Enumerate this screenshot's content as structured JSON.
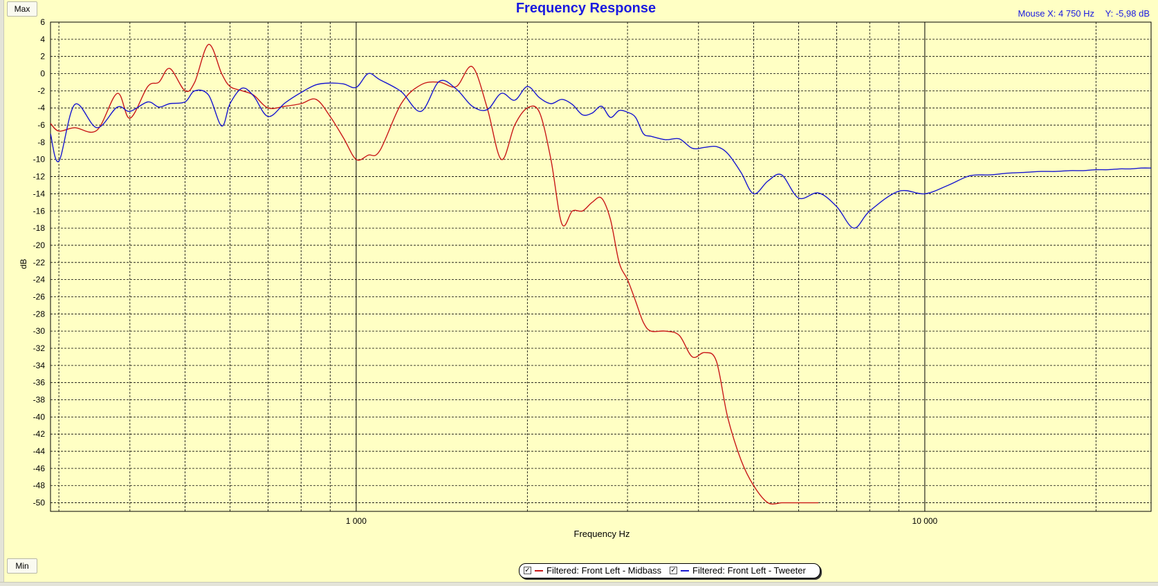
{
  "buttons": {
    "max_label": "Max",
    "min_label": "Min"
  },
  "mouse": {
    "x_readout": "Mouse X: 4 750 Hz",
    "y_readout": "Y: -5,98 dB"
  },
  "chart_data": {
    "type": "line",
    "title": "Frequency Response",
    "xlabel": "Frequency Hz",
    "ylabel": "dB",
    "xscale": "log",
    "xlim": [
      290,
      25000
    ],
    "ylim": [
      -51,
      6
    ],
    "yticks": [
      6,
      4,
      2,
      0,
      -2,
      -4,
      -6,
      -8,
      -10,
      -12,
      -14,
      -16,
      -18,
      -20,
      -22,
      -24,
      -26,
      -28,
      -30,
      -32,
      -34,
      -36,
      -38,
      -40,
      -42,
      -44,
      -46,
      -48,
      -50
    ],
    "xtick_labels": [
      {
        "value": 1000,
        "label": "1 000"
      },
      {
        "value": 10000,
        "label": "10 000"
      }
    ],
    "grid": true,
    "legend_position": "bottom-center",
    "background": "#ffffc4",
    "series": [
      {
        "name": "Filtered: Front Left - Midbass",
        "color": "#c81818",
        "checked": true,
        "x": [
          290,
          300,
          320,
          350,
          380,
          400,
          430,
          450,
          470,
          500,
          520,
          550,
          580,
          600,
          630,
          660,
          700,
          750,
          800,
          850,
          900,
          950,
          1000,
          1050,
          1100,
          1200,
          1300,
          1400,
          1500,
          1600,
          1700,
          1800,
          1900,
          2000,
          2100,
          2200,
          2300,
          2400,
          2500,
          2600,
          2700,
          2800,
          2900,
          3000,
          3100,
          3200,
          3300,
          3500,
          3700,
          3900,
          4100,
          4300,
          4500,
          4750,
          5000,
          5300,
          5600,
          5800,
          6000,
          6100,
          6200,
          6300,
          6400,
          6500
        ],
        "y": [
          -5.8,
          -6.7,
          -6.3,
          -6.6,
          -2.3,
          -5.2,
          -1.5,
          -1,
          0.6,
          -2,
          -1,
          3.4,
          0,
          -1.5,
          -2,
          -2.5,
          -4,
          -3.8,
          -3.5,
          -3,
          -5,
          -7.5,
          -10,
          -9.5,
          -9,
          -3.5,
          -1.3,
          -1,
          -1.5,
          0.8,
          -4,
          -10,
          -6,
          -4,
          -4.5,
          -10,
          -17.5,
          -16,
          -16,
          -15,
          -14.5,
          -17,
          -22,
          -24,
          -26.5,
          -29,
          -30,
          -30,
          -30.5,
          -33,
          -32.5,
          -33.5,
          -40,
          -45,
          -48,
          -50,
          -50,
          -50,
          -50,
          -50,
          -50,
          -50,
          -50,
          -50
        ]
      },
      {
        "name": "Filtered: Front Left - Tweeter",
        "color": "#1818d0",
        "checked": true,
        "x": [
          290,
          300,
          320,
          350,
          380,
          400,
          430,
          450,
          470,
          500,
          520,
          550,
          580,
          600,
          630,
          660,
          700,
          750,
          800,
          850,
          900,
          950,
          1000,
          1050,
          1100,
          1200,
          1300,
          1400,
          1500,
          1600,
          1700,
          1800,
          1900,
          2000,
          2100,
          2200,
          2300,
          2400,
          2500,
          2600,
          2700,
          2800,
          2900,
          3000,
          3100,
          3200,
          3300,
          3500,
          3700,
          3900,
          4100,
          4300,
          4500,
          4750,
          5000,
          5300,
          5600,
          6000,
          6500,
          7000,
          7500,
          8000,
          9000,
          10000,
          11000,
          12000,
          13000,
          14000,
          15000,
          16000,
          17000,
          18000,
          19000,
          20000,
          21000,
          22000,
          23000,
          24000,
          25000
        ],
        "y": [
          -7,
          -10.2,
          -3.6,
          -6.3,
          -3.9,
          -4.4,
          -3.3,
          -3.9,
          -3.5,
          -3.3,
          -2,
          -2.5,
          -6.1,
          -3.5,
          -1.7,
          -2.6,
          -5,
          -3.4,
          -2.2,
          -1.3,
          -1.1,
          -1.2,
          -1.6,
          0,
          -0.7,
          -2.1,
          -4.4,
          -0.9,
          -1.8,
          -3.8,
          -4.2,
          -2.3,
          -3.1,
          -1.5,
          -2.8,
          -3.5,
          -3,
          -3.6,
          -4.8,
          -4.6,
          -3.8,
          -5.1,
          -4.3,
          -4.5,
          -5.1,
          -7,
          -7.3,
          -7.7,
          -7.6,
          -8.7,
          -8.6,
          -8.5,
          -9.3,
          -11.5,
          -14,
          -12.5,
          -11.8,
          -14.5,
          -13.9,
          -15.5,
          -18,
          -16,
          -13.7,
          -14,
          -13,
          -11.9,
          -11.8,
          -11.6,
          -11.5,
          -11.4,
          -11.4,
          -11.3,
          -11.3,
          -11.2,
          -11.2,
          -11.1,
          -11.1,
          -11.0,
          -11.0
        ]
      }
    ]
  }
}
